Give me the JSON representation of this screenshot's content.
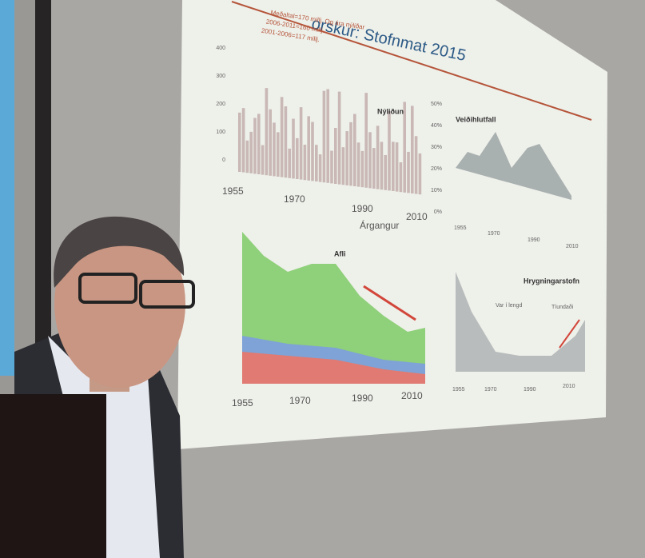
{
  "slide": {
    "title": "orskur: Stofnmat 2015",
    "note_lines": [
      "Meðaltal=170 millj. Og ára nýliðar",
      "2006-2011=160 millj.",
      "2001-2006=117 millj."
    ],
    "panels": [
      {
        "label": "Nýliðun",
        "x_labels": [
          "1955",
          "1970",
          "1990",
          "2010"
        ],
        "x_title": "Árgangur",
        "y_labels": [
          "400",
          "300",
          "200",
          "100",
          "0"
        ]
      },
      {
        "label": "Veiðihlutfall",
        "x_labels": [
          "1955",
          "1970",
          "1990",
          "2010"
        ],
        "y_labels": [
          "50%",
          "40%",
          "30%",
          "20%",
          "10%",
          "0%"
        ]
      },
      {
        "label": "Afli",
        "x_labels": [
          "1955",
          "1970",
          "1990",
          "2010"
        ]
      },
      {
        "label": "Hrygningarstofn",
        "x_labels": [
          "1955",
          "1970",
          "1990",
          "2010"
        ],
        "annotations": [
          "Var í lengd",
          "Tíundaði"
        ]
      }
    ]
  }
}
